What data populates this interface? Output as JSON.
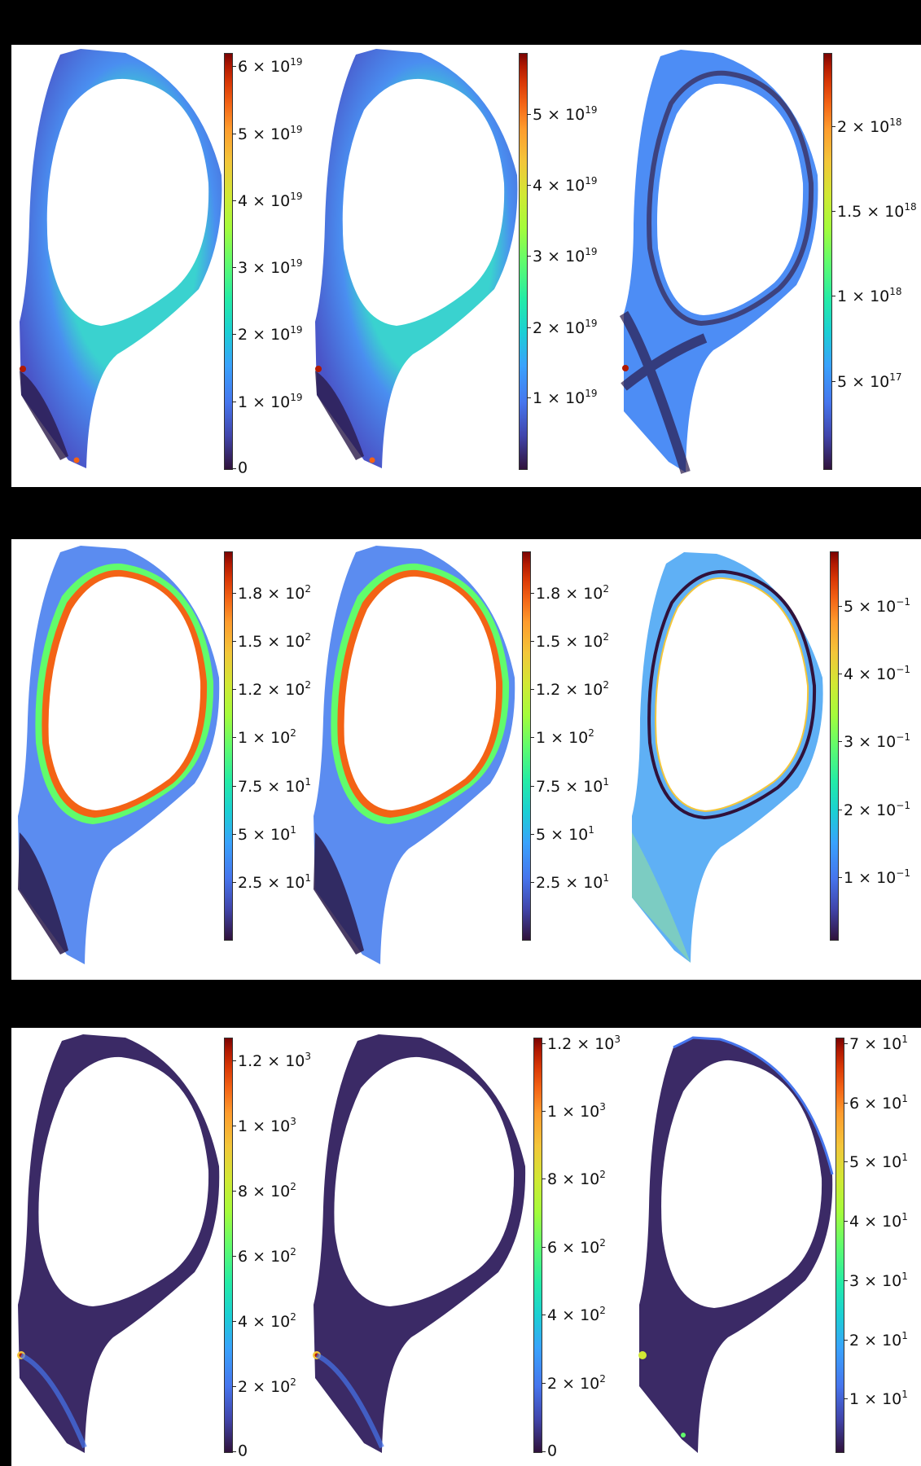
{
  "figure": {
    "background": "#000000",
    "panel_background": "#ffffff",
    "colormap": "turbo"
  },
  "chart_data": [
    {
      "type": "heatmap",
      "row": 1,
      "col": 1,
      "title": "",
      "colorbar": {
        "min": 0,
        "max": 6.2e+19,
        "ticks": [
          "0",
          "1 × 10^19",
          "2 × 10^19",
          "3 × 10^19",
          "4 × 10^19",
          "5 × 10^19",
          "6 × 10^19"
        ],
        "tick_values": [
          0,
          1e+19,
          2e+19,
          3e+19,
          4e+19,
          5e+19,
          6e+19
        ]
      },
      "description": "Tokamak poloidal cross-section field map, cyan inner boundary, hot spots at divertor targets"
    },
    {
      "type": "heatmap",
      "row": 1,
      "col": 2,
      "title": "",
      "colorbar": {
        "min": 0,
        "max": 5.8e+19,
        "ticks": [
          "1 × 10^19",
          "2 × 10^19",
          "3 × 10^19",
          "4 × 10^19",
          "5 × 10^19"
        ],
        "tick_values": [
          1e+19,
          2e+19,
          3e+19,
          4e+19,
          5e+19
        ]
      },
      "description": "Tokamak poloidal cross-section field map, similar to col 1"
    },
    {
      "type": "heatmap",
      "row": 1,
      "col": 3,
      "title": "",
      "colorbar": {
        "min": 0,
        "max": 2.45e+18,
        "ticks": [
          "5 × 10^17",
          "1 × 10^18",
          "1.5 × 10^18",
          "2 × 10^18"
        ],
        "tick_values": [
          5e+17,
          1e+18,
          1.5e+18,
          2e+18
        ]
      },
      "description": "Absolute error map, mostly blue with dark separatrix line"
    },
    {
      "type": "heatmap",
      "row": 2,
      "col": 1,
      "title": "",
      "colorbar": {
        "min": 0,
        "max": 198,
        "ticks": [
          "2.5 × 10^1",
          "5 × 10^1",
          "7.5 × 10^1",
          "1 × 10^2",
          "1.2 × 10^2",
          "1.5 × 10^2",
          "1.8 × 10^2"
        ],
        "tick_values": [
          25,
          50,
          75,
          100,
          120,
          150,
          180
        ]
      },
      "description": "Field peaking (red) at core boundary, decaying outward"
    },
    {
      "type": "heatmap",
      "row": 2,
      "col": 2,
      "title": "",
      "colorbar": {
        "min": 0,
        "max": 198,
        "ticks": [
          "2.5 × 10^1",
          "5 × 10^1",
          "7.5 × 10^1",
          "1 × 10^2",
          "1.2 × 10^2",
          "1.5 × 10^2",
          "1.8 × 10^2"
        ],
        "tick_values": [
          25,
          50,
          75,
          100,
          120,
          150,
          180
        ]
      },
      "description": "Similar to col 1"
    },
    {
      "type": "heatmap",
      "row": 2,
      "col": 3,
      "title": "",
      "colorbar": {
        "min": 0,
        "max": 0.57,
        "ticks": [
          "1 × 10^-1",
          "2 × 10^-1",
          "3 × 10^-1",
          "4 × 10^-1",
          "5 × 10^-1"
        ],
        "tick_values": [
          0.1,
          0.2,
          0.3,
          0.4,
          0.5
        ]
      },
      "description": "Error map: light blue/cyan with dark line near separatrix and orange inner edge"
    },
    {
      "type": "heatmap",
      "row": 3,
      "col": 1,
      "title": "",
      "colorbar": {
        "min": 0,
        "max": 1270,
        "ticks": [
          "0",
          "2 × 10^2",
          "4 × 10^2",
          "6 × 10^2",
          "8 × 10^2",
          "1 × 10^3",
          "1.2 × 10^3"
        ],
        "tick_values": [
          0,
          200,
          400,
          600,
          800,
          1000,
          1200
        ]
      },
      "description": "Mostly dark purple with hot spot at left divertor leg"
    },
    {
      "type": "heatmap",
      "row": 3,
      "col": 2,
      "title": "",
      "colorbar": {
        "min": 0,
        "max": 1220,
        "ticks": [
          "0",
          "2 × 10^2",
          "4 × 10^2",
          "6 × 10^2",
          "8 × 10^2",
          "1 × 10^3",
          "1.2 × 10^3"
        ],
        "tick_values": [
          0,
          200,
          400,
          600,
          800,
          1000,
          1200
        ]
      },
      "description": "Similar to col 1"
    },
    {
      "type": "heatmap",
      "row": 3,
      "col": 3,
      "title": "",
      "colorbar": {
        "min": 0,
        "max": 70,
        "ticks": [
          "1 × 10^1",
          "2 × 10^1",
          "3 × 10^1",
          "4 × 10^1",
          "5 × 10^1",
          "6 × 10^1",
          "7 × 10^1"
        ],
        "tick_values": [
          10,
          20,
          30,
          40,
          50,
          60,
          70
        ]
      },
      "description": "Error map, dark purple with blue patches and yellow spot at left divertor"
    }
  ],
  "rows": [
    {
      "panels": [
        {
          "ticks": [
            {
              "b": "6",
              "e": "19",
              "p": 0.032
            },
            {
              "b": "5",
              "e": "19",
              "p": 0.194
            },
            {
              "b": "4",
              "e": "19",
              "p": 0.355
            },
            {
              "b": "3",
              "e": "19",
              "p": 0.516
            },
            {
              "b": "2",
              "e": "19",
              "p": 0.677
            },
            {
              "b": "1",
              "e": "19",
              "p": 0.839
            },
            {
              "b": "0",
              "e": "",
              "p": 1.0
            }
          ]
        },
        {
          "ticks": [
            {
              "b": "5",
              "e": "19",
              "p": 0.148
            },
            {
              "b": "4",
              "e": "19",
              "p": 0.318
            },
            {
              "b": "3",
              "e": "19",
              "p": 0.489
            },
            {
              "b": "2",
              "e": "19",
              "p": 0.66
            },
            {
              "b": "1",
              "e": "19",
              "p": 0.83
            }
          ]
        },
        {
          "ticks": [
            {
              "b": "2",
              "e": "18",
              "p": 0.176
            },
            {
              "b": "1.5",
              "e": "18",
              "p": 0.38
            },
            {
              "b": "1",
              "e": "18",
              "p": 0.585
            },
            {
              "b": "5",
              "e": "17",
              "p": 0.79
            }
          ]
        }
      ]
    },
    {
      "panels": [
        {
          "ticks": [
            {
              "b": "1.8",
              "e": "2",
              "p": 0.108
            },
            {
              "b": "1.5",
              "e": "2",
              "p": 0.232
            },
            {
              "b": "1.2",
              "e": "2",
              "p": 0.356
            },
            {
              "b": "1",
              "e": "2",
              "p": 0.48
            },
            {
              "b": "7.5",
              "e": "1",
              "p": 0.604
            },
            {
              "b": "5",
              "e": "1",
              "p": 0.728
            },
            {
              "b": "2.5",
              "e": "1",
              "p": 0.852
            }
          ]
        },
        {
          "ticks": [
            {
              "b": "1.8",
              "e": "2",
              "p": 0.108
            },
            {
              "b": "1.5",
              "e": "2",
              "p": 0.232
            },
            {
              "b": "1.2",
              "e": "2",
              "p": 0.356
            },
            {
              "b": "1",
              "e": "2",
              "p": 0.48
            },
            {
              "b": "7.5",
              "e": "1",
              "p": 0.604
            },
            {
              "b": "5",
              "e": "1",
              "p": 0.728
            },
            {
              "b": "2.5",
              "e": "1",
              "p": 0.852
            }
          ]
        },
        {
          "ticks": [
            {
              "b": "5",
              "e": "−1",
              "p": 0.14
            },
            {
              "b": "4",
              "e": "−1",
              "p": 0.315
            },
            {
              "b": "3",
              "e": "−1",
              "p": 0.49
            },
            {
              "b": "2",
              "e": "−1",
              "p": 0.665
            },
            {
              "b": "1",
              "e": "−1",
              "p": 0.84
            }
          ]
        }
      ]
    },
    {
      "panels": [
        {
          "ticks": [
            {
              "b": "1.2",
              "e": "3",
              "p": 0.055
            },
            {
              "b": "1",
              "e": "3",
              "p": 0.212
            },
            {
              "b": "8",
              "e": "2",
              "p": 0.37
            },
            {
              "b": "6",
              "e": "2",
              "p": 0.527
            },
            {
              "b": "4",
              "e": "2",
              "p": 0.685
            },
            {
              "b": "2",
              "e": "2",
              "p": 0.842
            },
            {
              "b": "0",
              "e": "",
              "p": 1.0
            }
          ]
        },
        {
          "ticks": [
            {
              "b": "1.2",
              "e": "3",
              "p": 0.013
            },
            {
              "b": "1",
              "e": "3",
              "p": 0.177
            },
            {
              "b": "8",
              "e": "2",
              "p": 0.341
            },
            {
              "b": "6",
              "e": "2",
              "p": 0.506
            },
            {
              "b": "4",
              "e": "2",
              "p": 0.67
            },
            {
              "b": "2",
              "e": "2",
              "p": 0.835
            },
            {
              "b": "0",
              "e": "",
              "p": 1.0
            }
          ]
        },
        {
          "ticks": [
            {
              "b": "7",
              "e": "1",
              "p": 0.013
            },
            {
              "b": "6",
              "e": "1",
              "p": 0.157
            },
            {
              "b": "5",
              "e": "1",
              "p": 0.3
            },
            {
              "b": "4",
              "e": "1",
              "p": 0.443
            },
            {
              "b": "3",
              "e": "1",
              "p": 0.587
            },
            {
              "b": "2",
              "e": "1",
              "p": 0.73
            },
            {
              "b": "1",
              "e": "1",
              "p": 0.873
            }
          ]
        }
      ]
    }
  ]
}
